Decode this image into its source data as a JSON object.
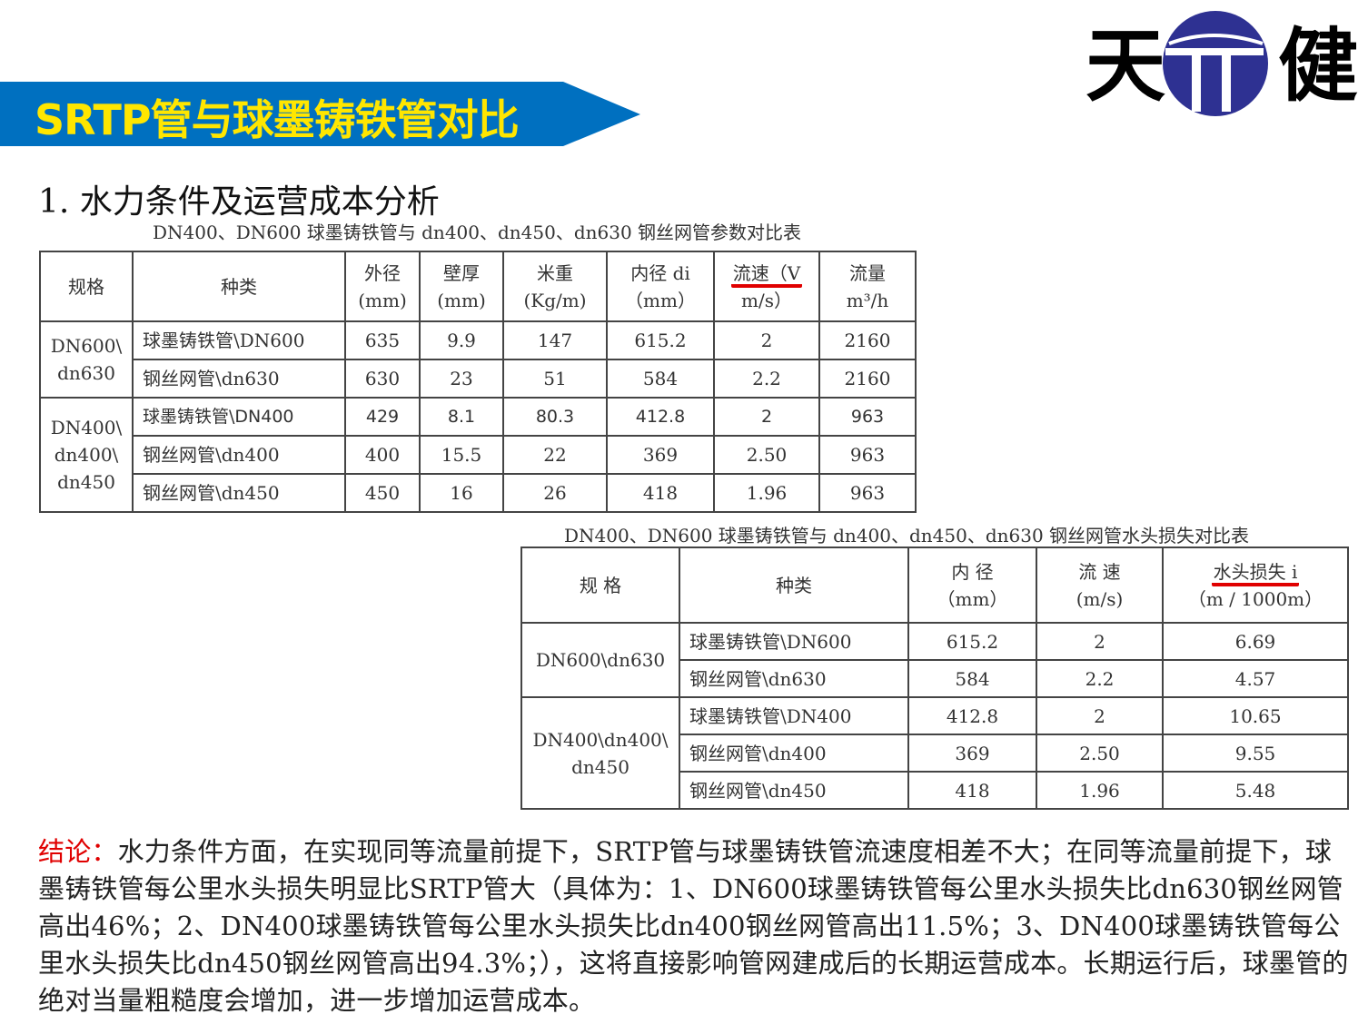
{
  "banner": {
    "title": "SRTP管与球墨铸铁管对比",
    "color": "#0070c0",
    "text_color": "#ffe600"
  },
  "logo": {
    "left_char": "天",
    "right_char": "健",
    "circle_color": "#2e3192"
  },
  "section_title": "1. 水力条件及运营成本分析",
  "table1": {
    "caption": "DN400、DN600 球墨铸铁管与 dn400、dn450、dn630 钢丝网管参数对比表",
    "headers": [
      [
        "规格"
      ],
      [
        "种类"
      ],
      [
        "外径",
        "(mm)"
      ],
      [
        "壁厚",
        "(mm)"
      ],
      [
        "米重",
        "(Kg/m)"
      ],
      [
        "内径 di",
        "（mm）"
      ],
      [
        "流速（V",
        "m/s）"
      ],
      [
        "流量",
        "m³/h"
      ]
    ],
    "groups": [
      {
        "spec": "DN600\\ dn630",
        "rows": [
          [
            "球墨铸铁管\\DN600",
            "635",
            "9.9",
            "147",
            "615.2",
            "2",
            "2160"
          ],
          [
            "钢丝网管\\dn630",
            "630",
            "23",
            "51",
            "584",
            "2.2",
            "2160"
          ]
        ]
      },
      {
        "spec": "DN400\\ dn400\\ dn450",
        "rows": [
          [
            "球墨铸铁管\\DN400",
            "429",
            "8.1",
            "80.3",
            "412.8",
            "2",
            "963"
          ],
          [
            "钢丝网管\\dn400",
            "400",
            "15.5",
            "22",
            "369",
            "2.50",
            "963"
          ],
          [
            "钢丝网管\\dn450",
            "450",
            "16",
            "26",
            "418",
            "1.96",
            "963"
          ]
        ]
      }
    ]
  },
  "table2": {
    "caption": "DN400、DN600 球墨铸铁管与 dn400、dn450、dn630 钢丝网管水头损失对比表",
    "headers": [
      [
        "规 格"
      ],
      [
        "种类"
      ],
      [
        "内 径",
        "（mm）"
      ],
      [
        "流 速",
        "(m/s)"
      ],
      [
        "水头损失 i",
        "（m / 1000m）"
      ]
    ],
    "groups": [
      {
        "spec": "DN600\\dn630",
        "rows": [
          [
            "球墨铸铁管\\DN600",
            "615.2",
            "2",
            "6.69"
          ],
          [
            "钢丝网管\\dn630",
            "584",
            "2.2",
            "4.57"
          ]
        ]
      },
      {
        "spec": "DN400\\dn400\\ dn450",
        "rows": [
          [
            "球墨铸铁管\\DN400",
            "412.8",
            "2",
            "10.65"
          ],
          [
            "钢丝网管\\dn400",
            "369",
            "2.50",
            "9.55"
          ],
          [
            "钢丝网管\\dn450",
            "418",
            "1.96",
            "5.48"
          ]
        ]
      }
    ]
  },
  "conclusion": {
    "label": "结论：",
    "text": "水力条件方面，在实现同等流量前提下，SRTP管与球墨铸铁管流速度相差不大；在同等流量前提下，球墨铸铁管每公里水头损失明显比SRTP管大（具体为：1、DN600球墨铸铁管每公里水头损失比dn630钢丝网管高出46%；2、DN400球墨铸铁管每公里水头损失比dn400钢丝网管高出11.5%；3、DN400球墨铸铁管每公里水头损失比dn450钢丝网管高出94.3%；），这将直接影响管网建成后的长期运营成本。长期运行后，球墨管的绝对当量粗糙度会增加，进一步增加运营成本。",
    "highlight_color": "#e00000"
  }
}
